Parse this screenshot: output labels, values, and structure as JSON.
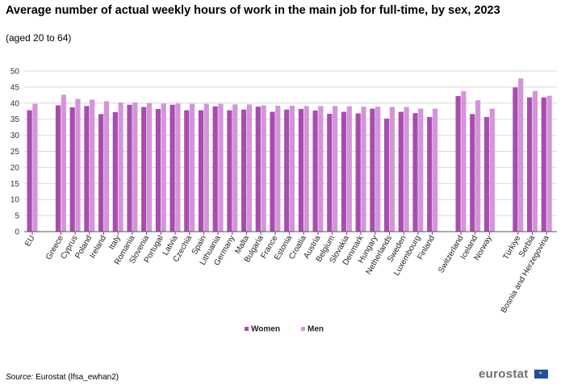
{
  "title": "Average number of actual weekly hours of work in the main job for full-time, by sex, 2023",
  "subtitle": "(aged 20 to 64)",
  "source_label": "Source:",
  "source_text": "Eurostat (lfsa_ewhan2)",
  "logo_text": "eurostat",
  "colors": {
    "women": "#a84db0",
    "men": "#d494da",
    "grid": "#d9d9d9",
    "axis": "#555555"
  },
  "chart_data": {
    "type": "bar",
    "title": "Average number of actual weekly hours of work in the main job for full-time, by sex, 2023",
    "xlabel": "",
    "ylabel": "",
    "ylim": [
      0,
      50
    ],
    "yticks": [
      0,
      5,
      10,
      15,
      20,
      25,
      30,
      35,
      40,
      45,
      50
    ],
    "grid": true,
    "legend_position": "bottom-center",
    "categories": [
      "EU",
      "Greece",
      "Cyprus",
      "Poland",
      "Ireland",
      "Italy",
      "Romania",
      "Slovenia",
      "Portugal",
      "Latvia",
      "Czechia",
      "Spain",
      "Lithuania",
      "Germany",
      "Malta",
      "Bulgaria",
      "France",
      "Estonia",
      "Croatia",
      "Austria",
      "Belgium",
      "Slovakia",
      "Denmark",
      "Hungary",
      "Netherlands",
      "Sweden",
      "Luxembourg",
      "Finland",
      "Switzerland",
      "Iceland",
      "Norway",
      "Türkiye",
      "Serbia",
      "Bosnia and Herzegovina"
    ],
    "series": [
      {
        "name": "Women",
        "values": [
          37.8,
          39.3,
          38.7,
          39.1,
          36.6,
          37.2,
          39.5,
          38.8,
          38.2,
          39.5,
          37.8,
          37.8,
          39.0,
          37.8,
          38.0,
          38.9,
          37.3,
          38.0,
          38.2,
          37.7,
          36.7,
          37.3,
          36.8,
          38.3,
          35.2,
          37.3,
          36.9,
          35.7,
          42.2,
          36.6,
          35.7,
          44.9,
          41.8,
          41.8
        ]
      },
      {
        "name": "Men",
        "values": [
          39.8,
          42.6,
          41.3,
          41.1,
          40.6,
          40.2,
          40.2,
          40.0,
          39.9,
          39.9,
          39.8,
          39.8,
          39.8,
          39.6,
          39.6,
          39.3,
          39.2,
          39.2,
          39.1,
          39.1,
          39.1,
          39.0,
          38.9,
          38.9,
          38.8,
          38.8,
          38.3,
          38.3,
          43.7,
          40.9,
          38.3,
          47.7,
          43.8,
          42.3
        ]
      }
    ]
  }
}
